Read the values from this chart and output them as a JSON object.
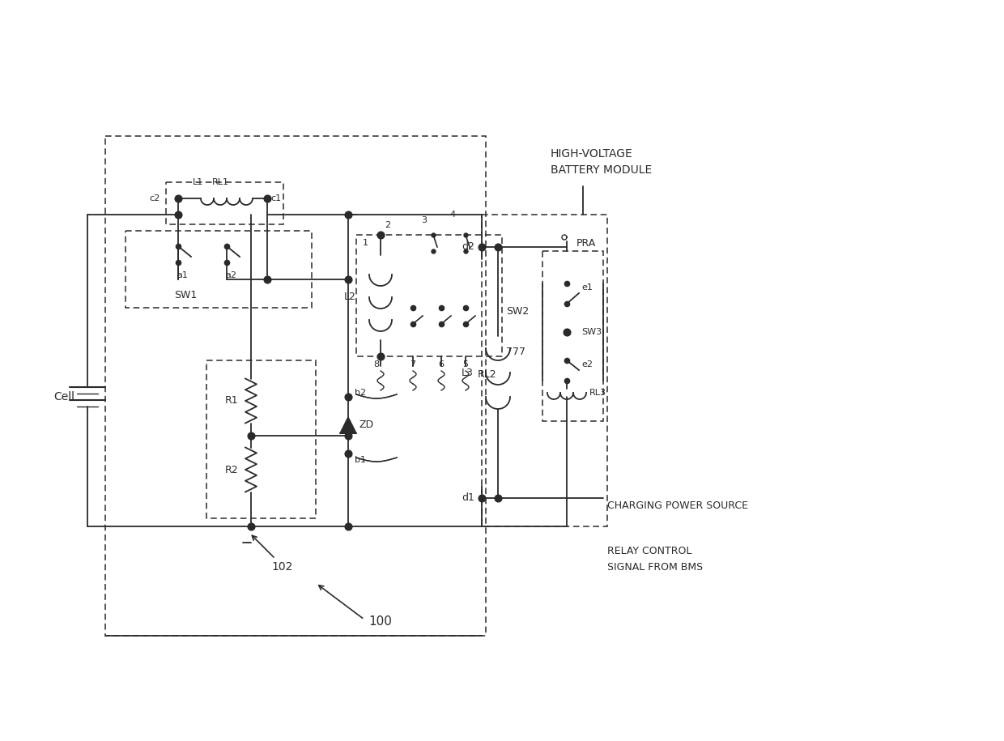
{
  "bg_color": "#ffffff",
  "lc": "#2a2a2a",
  "dlc": "#444444",
  "font": "DejaVu Sans",
  "labels": {
    "Cell": "Cell",
    "RL1": "RL1",
    "L1": "L1",
    "c1": "c1",
    "c2": "c2",
    "a1": "a1",
    "a2": "a2",
    "SW1": "SW1",
    "L2": "L2",
    "L_num": "1",
    "SW2": "SW2",
    "RL2": "RL2",
    "R1": "R1",
    "R2": "R2",
    "ZD": "ZD",
    "b1": "b1",
    "b2": "b2",
    "label_102": "102",
    "label_100": "100",
    "d1": "d1",
    "d2": "d2",
    "L3": "L3",
    "PRA": "PRA",
    "e1": "e1",
    "e2": "e2",
    "SW3": "SW3",
    "RL3": "RL3",
    "HIGH_VOLTAGE": "HIGH-VOLTAGE",
    "BATTERY_MODULE": "BATTERY MODULE",
    "CHARGING_POWER": "CHARGING POWER SOURCE",
    "RELAY_CONTROL": "RELAY CONTROL",
    "SIGNAL_FROM_BMS": "SIGNAL FROM BMS",
    "num2": "2",
    "num3": "3",
    "num4": "4",
    "num5": "5",
    "num6": "6",
    "num7": "7",
    "num8": "8",
    "num777": "777"
  }
}
